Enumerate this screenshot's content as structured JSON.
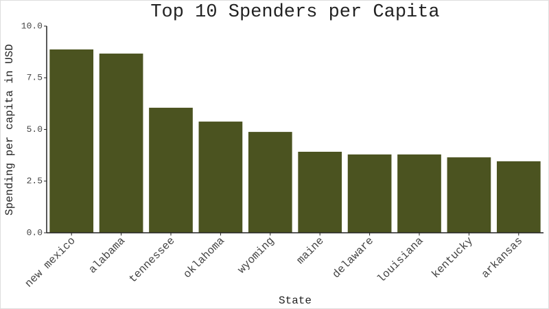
{
  "chart_data": {
    "type": "bar",
    "title": "Top 10 Spenders per Capita",
    "x_label": "State",
    "y_label": "Spending per capita in USD",
    "categories": [
      "new mexico",
      "alabama",
      "tennessee",
      "oklahoma",
      "wyoming",
      "maine",
      "delaware",
      "louisiana",
      "kentucky",
      "arkansas"
    ],
    "values": [
      8.87,
      8.67,
      6.05,
      5.38,
      4.88,
      3.92,
      3.79,
      3.79,
      3.65,
      3.46
    ],
    "color": "#4b5320",
    "ylim": [
      0,
      10
    ],
    "yticks": [
      {
        "value": 0,
        "label": "0.0"
      },
      2.5,
      {
        "value": 5,
        "label": "5.0"
      },
      7.5,
      {
        "value": 10,
        "label": "10.0"
      }
    ]
  }
}
